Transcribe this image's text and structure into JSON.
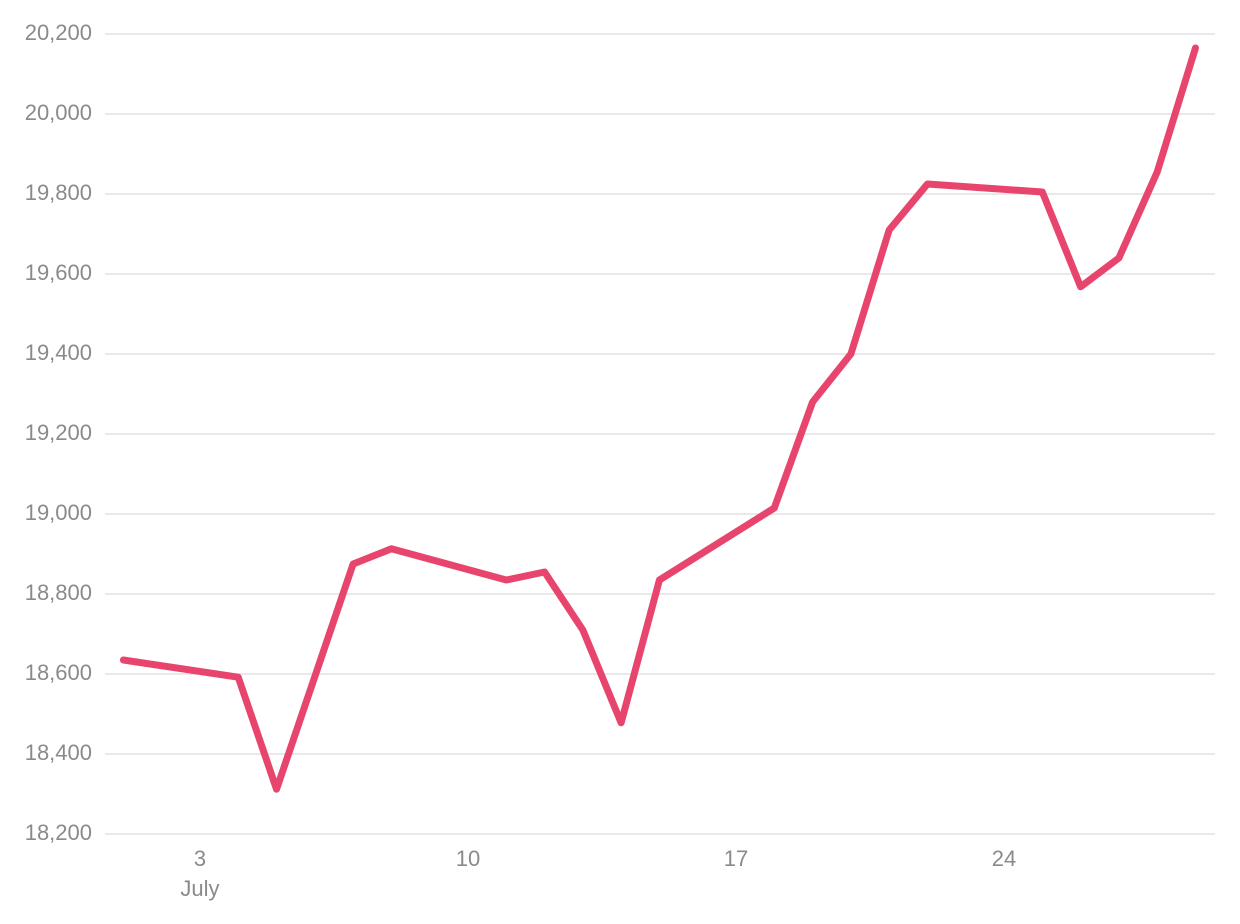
{
  "chart_data": {
    "type": "line",
    "x": [
      1,
      4,
      5,
      7,
      8,
      11,
      12,
      13,
      14,
      15,
      18,
      19,
      20,
      21,
      22,
      25,
      26,
      27,
      28,
      29
    ],
    "series": [
      {
        "color": "#e8456e",
        "values": [
          18635,
          18592,
          18312,
          18875,
          18913,
          18835,
          18855,
          18710,
          18478,
          18835,
          19015,
          19280,
          19400,
          19710,
          19825,
          19805,
          19568,
          19640,
          19855,
          20165
        ]
      }
    ],
    "xlim": [
      0.52,
      29.51
    ],
    "xticks": [
      3,
      10,
      17,
      24
    ],
    "x_month_label": "July",
    "ylim": [
      18200,
      20200
    ],
    "yticks": [
      {
        "value": 18200,
        "label": "18,200"
      },
      {
        "value": 18400,
        "label": "18,400"
      },
      {
        "value": 18600,
        "label": "18,600"
      },
      {
        "value": 18800,
        "label": "18,800"
      },
      {
        "value": 19000,
        "label": "19,000"
      },
      {
        "value": 19200,
        "label": "19,200"
      },
      {
        "value": 19400,
        "label": "19,400"
      },
      {
        "value": 19600,
        "label": "19,600"
      },
      {
        "value": 19800,
        "label": "19,800"
      },
      {
        "value": 20000,
        "label": "20,000"
      },
      {
        "value": 20200,
        "label": "20,200"
      }
    ],
    "grid": true
  }
}
